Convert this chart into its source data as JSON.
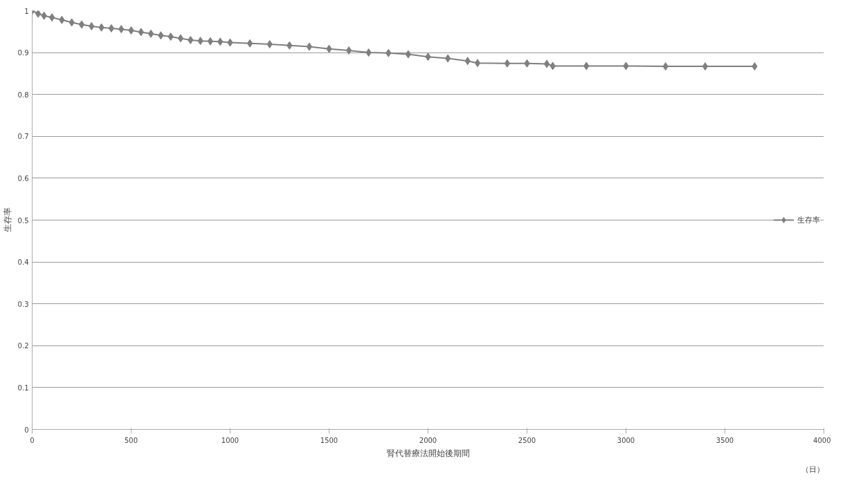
{
  "chart_data": {
    "type": "line",
    "xlabel": "腎代替療法開始後期間",
    "ylabel": "生存率",
    "annotations": [
      "（日）"
    ],
    "xlim": [
      0,
      4000
    ],
    "xticks": [
      0,
      500,
      1000,
      1500,
      2000,
      2500,
      3000,
      3500,
      4000
    ],
    "ylim": [
      0,
      1
    ],
    "yticks": [
      0,
      0.1,
      0.2,
      0.3,
      0.4,
      0.5,
      0.6,
      0.7,
      0.8,
      0.9,
      1
    ],
    "grid": "y",
    "legend": "right",
    "marker": "diamond",
    "line_style": "solid",
    "series": [
      {
        "name": "生存率",
        "color": "#7f7f7f",
        "x": [
          0,
          30,
          60,
          100,
          150,
          200,
          250,
          300,
          350,
          400,
          450,
          500,
          550,
          600,
          650,
          700,
          750,
          800,
          850,
          900,
          950,
          1000,
          1100,
          1200,
          1300,
          1400,
          1500,
          1600,
          1700,
          1800,
          1900,
          2000,
          2100,
          2200,
          2250,
          2400,
          2500,
          2600,
          2630,
          2800,
          3000,
          3200,
          3400,
          3650
        ],
        "values": [
          1.0,
          0.993,
          0.988,
          0.984,
          0.978,
          0.972,
          0.967,
          0.963,
          0.96,
          0.958,
          0.956,
          0.953,
          0.949,
          0.945,
          0.941,
          0.938,
          0.934,
          0.93,
          0.928,
          0.927,
          0.926,
          0.924,
          0.922,
          0.92,
          0.917,
          0.914,
          0.909,
          0.905,
          0.9,
          0.899,
          0.896,
          0.89,
          0.886,
          0.88,
          0.875,
          0.874,
          0.874,
          0.873,
          0.868,
          0.868,
          0.868,
          0.867,
          0.867,
          0.867
        ]
      }
    ]
  }
}
